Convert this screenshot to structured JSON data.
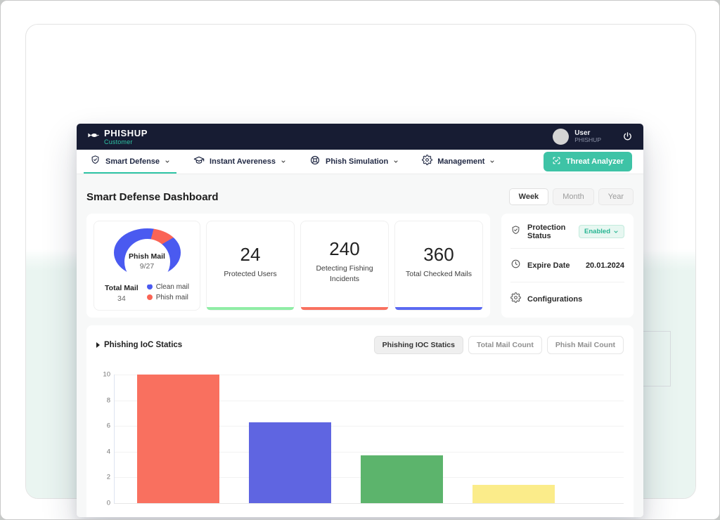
{
  "colors": {
    "brand_teal": "#2ec4a5",
    "navbar_bg": "#171c33",
    "accent_green": "#90eda6",
    "accent_red": "#f97160",
    "accent_blue": "#5b6af2"
  },
  "icons": {
    "logo": "fish-icon",
    "menu": [
      "shield-check-icon",
      "graduation-cap-icon",
      "target-icon",
      "gear-icon"
    ],
    "threat_analyzer": "scan-check-icon",
    "session": "power-icon",
    "status_rows": [
      "shield-check-icon",
      "clock-icon",
      "gear-icon"
    ]
  },
  "navbar": {
    "brand": "PHISHUP",
    "brand_sub": "Customer",
    "user_name": "User",
    "user_org": "PHISHUP"
  },
  "menu": {
    "items": [
      {
        "label": "Smart Defense",
        "active": true
      },
      {
        "label": "Instant Avereness",
        "active": false
      },
      {
        "label": "Phish Simulation",
        "active": false
      },
      {
        "label": "Management",
        "active": false
      }
    ],
    "threat_analyzer_label": "Threat Analyzer"
  },
  "page": {
    "title": "Smart Defense Dashboard",
    "periods": [
      "Week",
      "Month",
      "Year"
    ],
    "active_period": "Week"
  },
  "overview": {
    "donut": {
      "center_title": "Phish Mail",
      "center_value": "9/27",
      "total_label": "Total Mail",
      "total_value": "34",
      "phish_start_deg": 15,
      "phish_end_deg": 60,
      "legend": [
        {
          "label": "Clean mail",
          "color": "#4a5af0"
        },
        {
          "label": "Phish mail",
          "color": "#fa6455"
        }
      ]
    },
    "stats": [
      {
        "value": "24",
        "label": "Protected Users",
        "accent": "#90eda6"
      },
      {
        "value": "240",
        "label": "Detecting Fishing Incidents",
        "accent": "#f97160"
      },
      {
        "value": "360",
        "label": "Total Checked Mails",
        "accent": "#5b6af2"
      }
    ]
  },
  "status_panel": {
    "rows": [
      {
        "label": "Protection Status",
        "value": "Enabled"
      },
      {
        "label": "Expire Date",
        "value": "20.01.2024"
      },
      {
        "label": "Configurations",
        "value": ""
      }
    ]
  },
  "chart_section": {
    "title": "Phishing IoC Statics",
    "buttons": [
      {
        "label": "Phishing IOC Statics",
        "active": true
      },
      {
        "label": "Total Mail Count",
        "active": false
      },
      {
        "label": "Phish Mail Count",
        "active": false
      }
    ]
  },
  "chart_data": {
    "type": "bar",
    "title": "Phishing IoC Statics",
    "categories": [
      "",
      "",
      "",
      ""
    ],
    "values": [
      10,
      6.3,
      3.7,
      1.4
    ],
    "colors": [
      "#f9705f",
      "#5f65e1",
      "#5cb46c",
      "#fbec8a"
    ],
    "xlabel": "",
    "ylabel": "",
    "ylim": [
      0,
      10
    ],
    "yticks": [
      0,
      2,
      4,
      6,
      8,
      10
    ],
    "grid": true,
    "legend": "none",
    "note": "x-axis category labels cropped out of view"
  }
}
